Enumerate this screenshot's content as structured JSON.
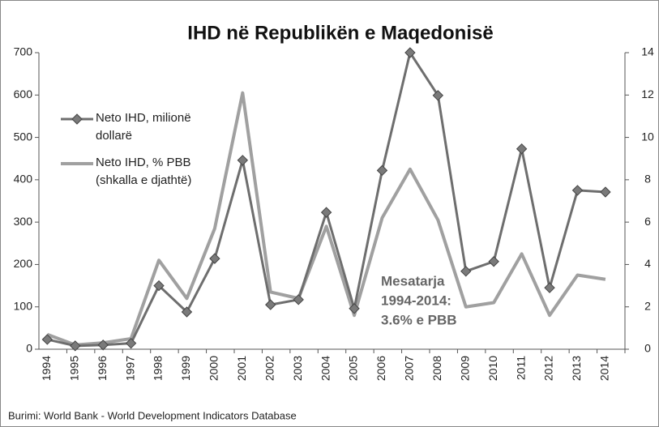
{
  "chart_data": {
    "type": "line",
    "title": "IHD në Republikën e Maqedonisë",
    "categories": [
      "1994",
      "1995",
      "1996",
      "1997",
      "1998",
      "1999",
      "2000",
      "2001",
      "2002",
      "2003",
      "2004",
      "2005",
      "2006",
      "2007",
      "2008",
      "2009",
      "2010",
      "2011",
      "2012",
      "2013",
      "2014"
    ],
    "series": [
      {
        "name": "Neto IHD, milionë dollarë",
        "color": "#6e6e6e",
        "marker": "diamond",
        "values": [
          23,
          8,
          10,
          14,
          150,
          88,
          214,
          446,
          105,
          117,
          323,
          96,
          422,
          700,
          599,
          184,
          207,
          473,
          145,
          375,
          371
        ]
      },
      {
        "name": "Neto IHD, % PBB (shkalla e djathtë)",
        "color": "#a0a0a0",
        "axis": "y2",
        "values": [
          0.7,
          0.2,
          0.3,
          0.5,
          4.2,
          2.4,
          5.7,
          12.1,
          2.7,
          2.4,
          5.8,
          1.6,
          6.2,
          8.5,
          6.1,
          2.0,
          2.2,
          4.5,
          1.6,
          3.5,
          3.3
        ]
      }
    ],
    "ylim": [
      0,
      700
    ],
    "yticks": [
      0,
      100,
      200,
      300,
      400,
      500,
      600,
      700
    ],
    "y2lim": [
      0,
      14
    ],
    "y2ticks": [
      0,
      2,
      4,
      6,
      8,
      10,
      12,
      14
    ],
    "annotation": [
      "Mesatarja",
      "1994-2014:",
      "3.6% e PBB"
    ],
    "source": "Burimi: World Bank - World Development Indicators Database"
  }
}
